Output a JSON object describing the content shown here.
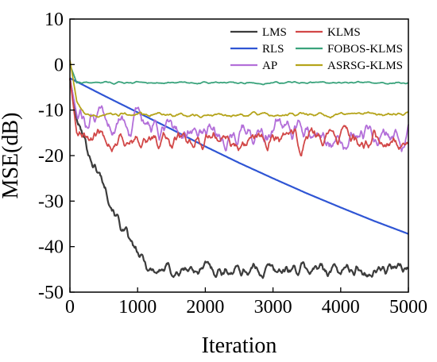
{
  "chart_data": {
    "type": "line",
    "xlabel": "Iteration",
    "ylabel": "MSE(dB)",
    "xlim": [
      0,
      5000
    ],
    "ylim": [
      -50,
      10
    ],
    "xticks": [
      0,
      1000,
      2000,
      3000,
      4000,
      5000
    ],
    "yticks": [
      10,
      0,
      -10,
      -20,
      -30,
      -40,
      -50
    ],
    "grid": false,
    "legend_placement": "top-right",
    "series": [
      {
        "name": "LMS",
        "color": "#3c3c3c",
        "x": [
          0,
          100,
          200,
          300,
          400,
          500,
          600,
          700,
          800,
          900,
          1000,
          1100,
          1200,
          1400,
          1600,
          1800,
          2000,
          2200,
          2400,
          2600,
          2800,
          3000,
          3200,
          3400,
          3600,
          3800,
          4000,
          4200,
          4400,
          4600,
          4800,
          5000
        ],
        "y": [
          -3,
          -12,
          -16,
          -20,
          -23,
          -26,
          -29,
          -33,
          -37,
          -40,
          -42,
          -44,
          -45,
          -45,
          -45.5,
          -45,
          -45,
          -45,
          -45,
          -45,
          -45,
          -45,
          -45,
          -45,
          -45,
          -45,
          -45,
          -45,
          -45,
          -45,
          -45,
          -45
        ]
      },
      {
        "name": "RLS",
        "color": "#2f55d4",
        "x": [
          0,
          500,
          1000,
          1500,
          2000,
          2500,
          3000,
          3500,
          4000,
          4500,
          5000
        ],
        "y": [
          -3,
          -6.8,
          -10.5,
          -14.2,
          -18,
          -21.6,
          -25,
          -28.3,
          -31.4,
          -34.4,
          -37.2
        ]
      },
      {
        "name": "AP",
        "color": "#b36fd9",
        "x": [
          0,
          100,
          200,
          500,
          1000,
          1500,
          2000,
          2500,
          3000,
          3500,
          4000,
          4500,
          5000
        ],
        "y": [
          -3,
          -11,
          -12,
          -13,
          -14,
          -15,
          -15,
          -15,
          -15,
          -15,
          -15.5,
          -15.5,
          -15.5
        ]
      },
      {
        "name": "KLMS",
        "color": "#d24848",
        "x": [
          0,
          100,
          200,
          500,
          1000,
          1500,
          2000,
          2500,
          3000,
          3500,
          4000,
          4500,
          5000
        ],
        "y": [
          -3,
          -15,
          -16,
          -16.5,
          -16.5,
          -16.5,
          -16.5,
          -16.5,
          -16.5,
          -16.5,
          -16.5,
          -16.5,
          -16.5
        ]
      },
      {
        "name": "FOBOS-KLMS",
        "color": "#3aa37c",
        "x": [
          0,
          100,
          1000,
          2000,
          3000,
          4000,
          5000
        ],
        "y": [
          0,
          -4,
          -4,
          -4,
          -4,
          -4,
          -4
        ]
      },
      {
        "name": "ASRSG-KLMS",
        "color": "#b5a41b",
        "x": [
          0,
          100,
          200,
          500,
          1000,
          2000,
          3000,
          4000,
          5000
        ],
        "y": [
          1,
          -8,
          -10.5,
          -11,
          -11,
          -11,
          -11,
          -11,
          -11
        ]
      }
    ]
  }
}
